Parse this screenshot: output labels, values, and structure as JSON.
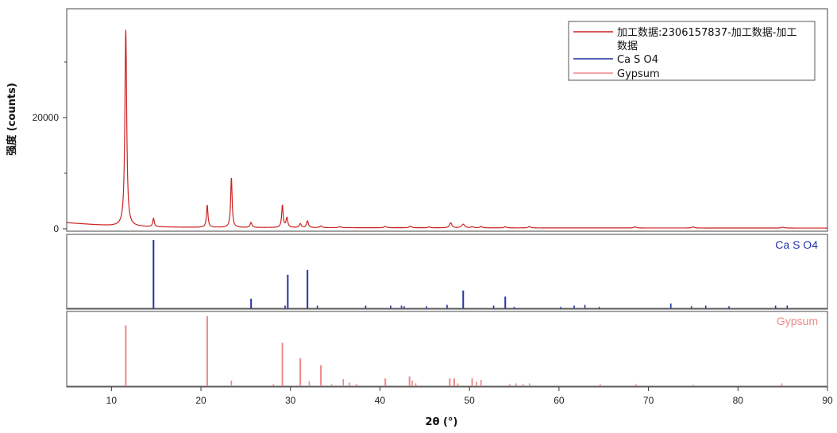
{
  "chart_data": {
    "type": "line",
    "xlabel": "2θ (°)",
    "ylabel": "强度 (counts)",
    "xlim": [
      5,
      90
    ],
    "ylim": [
      0,
      36000
    ],
    "x_ticks": [
      10,
      20,
      30,
      40,
      50,
      60,
      70,
      80,
      90
    ],
    "y_ticks": [
      0,
      20000
    ],
    "grid": false,
    "legend_position": "top-right",
    "legend": [
      {
        "label_line1": "加工数据:2306157837-加工数据-加工",
        "label_line2": "数据",
        "color": "#cc2222"
      },
      {
        "label_line1": "Ca S O4",
        "label_line2": "",
        "color": "#1f2f9e"
      },
      {
        "label_line1": "Gypsum",
        "label_line2": "",
        "color": "#ee8888"
      }
    ],
    "main_series": {
      "name": "加工数据:2306157837-加工数据-加工数据",
      "color": "#cc2222",
      "background": [
        [
          5,
          1100
        ],
        [
          8,
          750
        ],
        [
          10,
          550
        ],
        [
          11.5,
          480
        ],
        [
          14,
          360
        ],
        [
          18,
          280
        ],
        [
          25,
          230
        ],
        [
          35,
          200
        ],
        [
          50,
          170
        ],
        [
          70,
          150
        ],
        [
          90,
          130
        ]
      ],
      "peaks": [
        {
          "x": 11.6,
          "height": 35300,
          "width": 0.12
        },
        {
          "x": 14.7,
          "height": 1500,
          "width": 0.1
        },
        {
          "x": 20.7,
          "height": 4000,
          "width": 0.1
        },
        {
          "x": 23.4,
          "height": 8900,
          "width": 0.1
        },
        {
          "x": 25.6,
          "height": 900,
          "width": 0.12
        },
        {
          "x": 29.1,
          "height": 4000,
          "width": 0.1
        },
        {
          "x": 29.6,
          "height": 1700,
          "width": 0.12
        },
        {
          "x": 31.1,
          "height": 700,
          "width": 0.12
        },
        {
          "x": 31.9,
          "height": 1200,
          "width": 0.12
        },
        {
          "x": 33.4,
          "height": 300,
          "width": 0.15
        },
        {
          "x": 35.5,
          "height": 200,
          "width": 0.15
        },
        {
          "x": 40.6,
          "height": 250,
          "width": 0.15
        },
        {
          "x": 43.4,
          "height": 300,
          "width": 0.15
        },
        {
          "x": 45.5,
          "height": 150,
          "width": 0.15
        },
        {
          "x": 47.9,
          "height": 900,
          "width": 0.15
        },
        {
          "x": 49.3,
          "height": 650,
          "width": 0.2
        },
        {
          "x": 50.3,
          "height": 200,
          "width": 0.15
        },
        {
          "x": 51.3,
          "height": 250,
          "width": 0.15
        },
        {
          "x": 54.0,
          "height": 200,
          "width": 0.15
        },
        {
          "x": 56.7,
          "height": 250,
          "width": 0.15
        },
        {
          "x": 68.5,
          "height": 200,
          "width": 0.15
        },
        {
          "x": 75.0,
          "height": 200,
          "width": 0.15
        },
        {
          "x": 85.0,
          "height": 150,
          "width": 0.2
        }
      ]
    },
    "reference_panels": [
      {
        "name": "Ca S O4",
        "color": "#2233aa",
        "sticks": [
          [
            14.7,
            1.0
          ],
          [
            25.6,
            0.14
          ],
          [
            29.4,
            0.04
          ],
          [
            29.7,
            0.49
          ],
          [
            31.9,
            0.56
          ],
          [
            33.0,
            0.04
          ],
          [
            38.4,
            0.04
          ],
          [
            41.2,
            0.04
          ],
          [
            42.4,
            0.04
          ],
          [
            42.7,
            0.03
          ],
          [
            45.2,
            0.03
          ],
          [
            47.5,
            0.05
          ],
          [
            49.3,
            0.26
          ],
          [
            52.7,
            0.04
          ],
          [
            54.0,
            0.17
          ],
          [
            55.0,
            0.02
          ],
          [
            60.2,
            0.02
          ],
          [
            61.7,
            0.04
          ],
          [
            62.9,
            0.05
          ],
          [
            64.5,
            0.02
          ],
          [
            72.5,
            0.07
          ],
          [
            74.8,
            0.03
          ],
          [
            76.4,
            0.04
          ],
          [
            79.0,
            0.03
          ],
          [
            84.2,
            0.04
          ],
          [
            85.5,
            0.04
          ]
        ]
      },
      {
        "name": "Gypsum",
        "color": "#ee8888",
        "sticks": [
          [
            11.6,
            0.87
          ],
          [
            20.7,
            1.0
          ],
          [
            23.4,
            0.08
          ],
          [
            28.1,
            0.03
          ],
          [
            29.1,
            0.62
          ],
          [
            31.1,
            0.4
          ],
          [
            32.1,
            0.07
          ],
          [
            33.4,
            0.3
          ],
          [
            34.6,
            0.03
          ],
          [
            35.9,
            0.1
          ],
          [
            36.6,
            0.05
          ],
          [
            37.4,
            0.03
          ],
          [
            40.6,
            0.11
          ],
          [
            43.3,
            0.14
          ],
          [
            43.6,
            0.08
          ],
          [
            44.0,
            0.04
          ],
          [
            47.8,
            0.11
          ],
          [
            48.3,
            0.11
          ],
          [
            48.7,
            0.04
          ],
          [
            50.3,
            0.11
          ],
          [
            50.8,
            0.06
          ],
          [
            51.3,
            0.09
          ],
          [
            54.5,
            0.03
          ],
          [
            55.2,
            0.04
          ],
          [
            56.0,
            0.03
          ],
          [
            56.7,
            0.04
          ],
          [
            64.6,
            0.03
          ],
          [
            68.6,
            0.03
          ],
          [
            75.0,
            0.02
          ],
          [
            84.9,
            0.04
          ]
        ]
      }
    ]
  }
}
